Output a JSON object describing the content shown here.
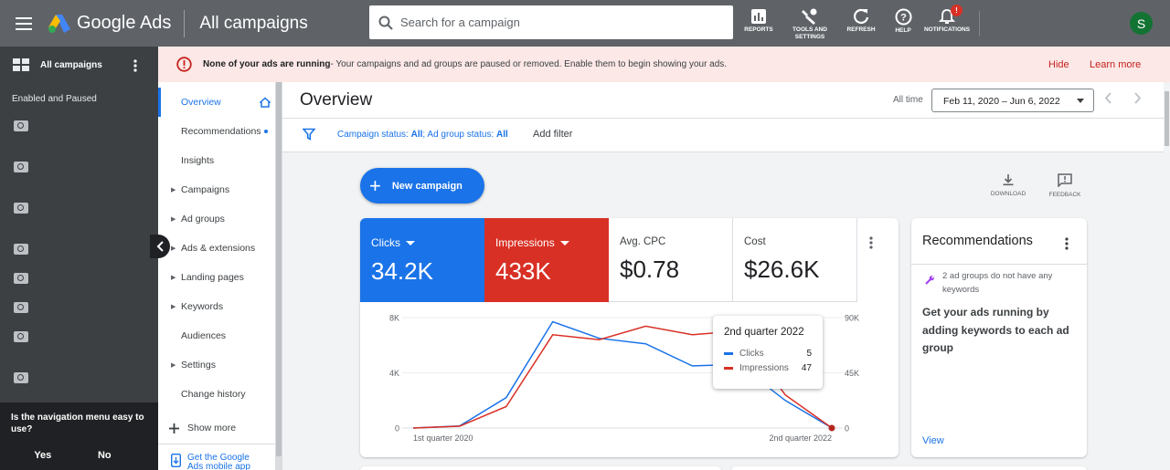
{
  "header": {
    "app_name": "Google Ads",
    "page_title": "All campaigns",
    "search_placeholder": "Search for a campaign",
    "tools": [
      {
        "label": "REPORTS",
        "icon": "reports-icon"
      },
      {
        "label": "TOOLS AND SETTINGS",
        "icon": "wrench-icon"
      },
      {
        "label": "REFRESH",
        "icon": "refresh-icon"
      },
      {
        "label": "HELP",
        "icon": "help-icon"
      },
      {
        "label": "NOTIFICATIONS",
        "icon": "bell-icon",
        "badge": "!"
      }
    ],
    "avatar_letter": "S"
  },
  "left_nav": {
    "title": "All campaigns",
    "subtitle": "Enabled and Paused",
    "survey_question": "Is the navigation menu easy to use?",
    "yes_label": "Yes",
    "no_label": "No"
  },
  "alert": {
    "bold_text": "None of your ads are running",
    "text": " - Your campaigns and ad groups are paused or removed. Enable them to begin showing your ads.",
    "hide_label": "Hide",
    "learn_label": "Learn more"
  },
  "page_menu": {
    "items": [
      {
        "label": "Overview",
        "active": true
      },
      {
        "label": "Recommendations",
        "dot": true
      },
      {
        "label": "Insights"
      },
      {
        "label": "Campaigns",
        "arrow": true
      },
      {
        "label": "Ad groups",
        "arrow": true
      },
      {
        "label": "Ads & extensions",
        "arrow": true
      },
      {
        "label": "Landing pages",
        "arrow": true
      },
      {
        "label": "Keywords",
        "arrow": true
      },
      {
        "label": "Audiences"
      },
      {
        "label": "Settings",
        "arrow": true
      },
      {
        "label": "Change history"
      }
    ],
    "show_more": "Show more",
    "app_link": "Get the Google Ads mobile app"
  },
  "overview": {
    "title": "Overview",
    "all_time_label": "All time",
    "date_range": "Feb 11, 2020 – Jun 6, 2022",
    "filter_text_1": "Campaign status: ",
    "filter_value_1": "All",
    "filter_text_2": "; Ad group status: ",
    "filter_value_2": "All",
    "add_filter": "Add filter",
    "new_campaign": "New campaign",
    "download_label": "DOWNLOAD",
    "feedback_label": "FEEDBACK"
  },
  "metrics": [
    {
      "label": "Clicks",
      "value": "34.2K"
    },
    {
      "label": "Impressions",
      "value": "433K"
    },
    {
      "label": "Avg. CPC",
      "value": "$0.78"
    },
    {
      "label": "Cost",
      "value": "$26.6K"
    }
  ],
  "chart_data": {
    "type": "line",
    "x_labels": [
      "1st quarter 2020",
      "2nd quarter 2022"
    ],
    "left_axis_ticks": [
      "8K",
      "4K",
      "0"
    ],
    "right_axis_ticks": [
      "90K",
      "45K",
      "0"
    ],
    "left_ylim": [
      0,
      8000
    ],
    "right_ylim": [
      0,
      90000
    ],
    "grid": true,
    "series": [
      {
        "name": "Clicks",
        "color": "#1a73e8",
        "axis": "left",
        "values": [
          0,
          150,
          2200,
          7700,
          6500,
          6100,
          4500,
          4600,
          2000,
          5
        ]
      },
      {
        "name": "Impressions",
        "color": "#d93025",
        "axis": "right",
        "values": [
          0,
          1500,
          17500,
          76000,
          72000,
          83000,
          76000,
          79000,
          27000,
          47
        ]
      }
    ],
    "tooltip": {
      "title": "2nd quarter 2022",
      "rows": [
        {
          "name": "Clicks",
          "value": "5",
          "color": "#1a73e8"
        },
        {
          "name": "Impressions",
          "value": "47",
          "color": "#d93025"
        }
      ]
    }
  },
  "recommendations": {
    "title": "Recommendations",
    "note": "2 ad groups do not have any keywords",
    "body": "Get your ads running by adding keywords to each ad group",
    "view_label": "View"
  }
}
